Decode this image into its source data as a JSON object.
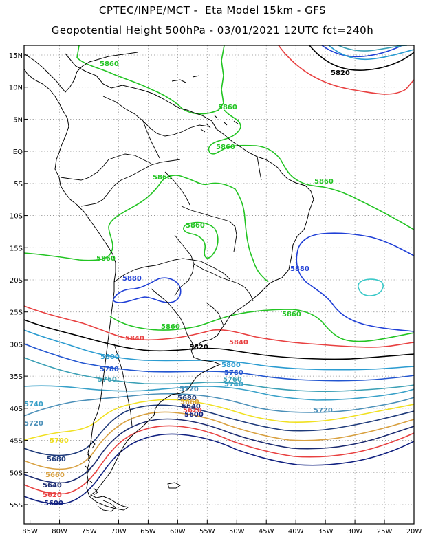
{
  "header": {
    "line1": "CPTEC/INPE/MCT -  Eta Model 15km - GFS",
    "line2": "Geopotential Height 500hPa - 03/01/2021 12UTC fct=240h"
  },
  "axes": {
    "lat_labels": [
      "15N",
      "10N",
      "5N",
      "EQ",
      "5S",
      "10S",
      "15S",
      "20S",
      "25S",
      "30S",
      "35S",
      "40S",
      "45S",
      "50S",
      "55S"
    ],
    "lat_values": [
      15,
      10,
      5,
      0,
      -5,
      -10,
      -15,
      -20,
      -25,
      -30,
      -35,
      -40,
      -45,
      -50,
      -55
    ],
    "lon_labels": [
      "85W",
      "80W",
      "75W",
      "70W",
      "65W",
      "60W",
      "55W",
      "50W",
      "45W",
      "40W",
      "35W",
      "30W",
      "25W",
      "20W"
    ],
    "lon_values": [
      -85,
      -80,
      -75,
      -70,
      -65,
      -60,
      -55,
      -50,
      -45,
      -40,
      -35,
      -30,
      -25,
      -20
    ],
    "lon_range": [
      -86,
      -20
    ],
    "lat_range": [
      -58,
      16.5
    ],
    "grid": "dotted"
  },
  "colors": {
    "5880": "#1f3fd6",
    "5860": "#22c422",
    "5840": "#e84040",
    "5820": "#000000",
    "5800": "#2a9bd0",
    "5780": "#2255d0",
    "5760": "#3a9fb5",
    "5740": "#38a0c8",
    "5720": "#4a8fb8",
    "5700": "#f0e020",
    "5680": "#1e3a7a",
    "5660": "#d8a040",
    "5640": "#1a2a70",
    "5620": "#e84040",
    "5600": "#102080",
    "coast": "#000000"
  },
  "contour_labels": [
    {
      "text": "5860",
      "level": "5860"
    },
    {
      "text": "5860",
      "level": "5860"
    },
    {
      "text": "5860",
      "level": "5860"
    },
    {
      "text": "5860",
      "level": "5860"
    },
    {
      "text": "5860",
      "level": "5860"
    },
    {
      "text": "5860",
      "level": "5860"
    },
    {
      "text": "5860",
      "level": "5860"
    },
    {
      "text": "5860",
      "level": "5860"
    },
    {
      "text": "5860",
      "level": "5860"
    },
    {
      "text": "5880",
      "level": "5880"
    },
    {
      "text": "5880",
      "level": "5880"
    },
    {
      "text": "5840",
      "level": "5840"
    },
    {
      "text": "5840",
      "level": "5840"
    },
    {
      "text": "5820",
      "level": "5820"
    },
    {
      "text": "5820",
      "level": "5820"
    },
    {
      "text": "5800",
      "level": "5800"
    },
    {
      "text": "5800",
      "level": "5800"
    },
    {
      "text": "5780",
      "level": "5780"
    },
    {
      "text": "5780",
      "level": "5780"
    },
    {
      "text": "5760",
      "level": "5760"
    },
    {
      "text": "5760",
      "level": "5760"
    },
    {
      "text": "5740",
      "level": "5740"
    },
    {
      "text": "5740",
      "level": "5740"
    },
    {
      "text": "5720",
      "level": "5720"
    },
    {
      "text": "5720",
      "level": "5720"
    },
    {
      "text": "5720",
      "level": "5720"
    },
    {
      "text": "5700",
      "level": "5700"
    },
    {
      "text": "5680",
      "level": "5680"
    },
    {
      "text": "5660",
      "level": "5660"
    },
    {
      "text": "5640",
      "level": "5640"
    },
    {
      "text": "5620",
      "level": "5620"
    },
    {
      "text": "5600",
      "level": "5600"
    },
    {
      "text": "5680",
      "level": "5680"
    },
    {
      "text": "5660",
      "level": "5660"
    },
    {
      "text": "5640",
      "level": "5640"
    },
    {
      "text": "5620",
      "level": "5620"
    },
    {
      "text": "5600",
      "level": "5600"
    }
  ]
}
